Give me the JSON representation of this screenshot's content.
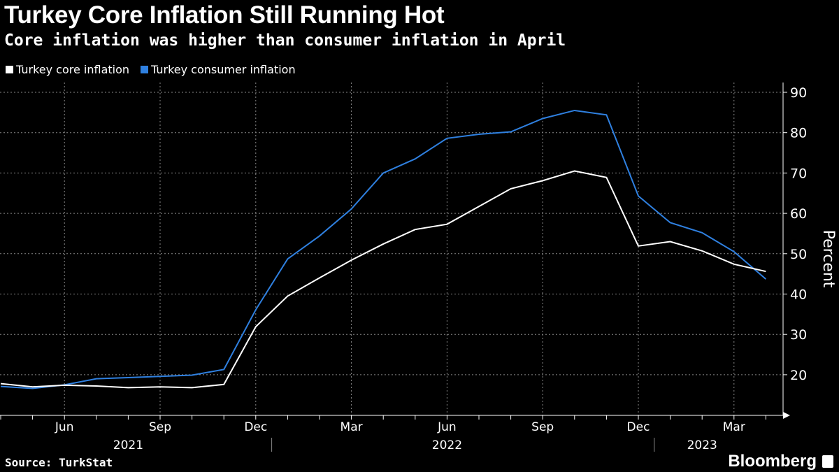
{
  "header": {
    "title": "Turkey Core Inflation Still Running Hot",
    "subtitle": "Core inflation was higher than consumer inflation in April"
  },
  "footer": {
    "source": "Source: TurkStat",
    "logo": "Bloomberg"
  },
  "chart_data": {
    "type": "line",
    "title": "Turkey Core Inflation Still Running Hot",
    "subtitle": "Core inflation was higher than consumer inflation in April",
    "ylabel": "Percent",
    "xlabel": "",
    "ylim": [
      12,
      92
    ],
    "yticks": [
      20,
      30,
      40,
      50,
      60,
      70,
      80,
      90
    ],
    "grid": true,
    "legend_placement": "top-left",
    "x": [
      "2021-04",
      "2021-05",
      "2021-06",
      "2021-07",
      "2021-08",
      "2021-09",
      "2021-10",
      "2021-11",
      "2021-12",
      "2022-01",
      "2022-02",
      "2022-03",
      "2022-04",
      "2022-05",
      "2022-06",
      "2022-07",
      "2022-08",
      "2022-09",
      "2022-10",
      "2022-11",
      "2022-12",
      "2023-01",
      "2023-02",
      "2023-03",
      "2023-04"
    ],
    "xtick_labels": [
      {
        "month": "2021-06",
        "label": "Jun"
      },
      {
        "month": "2021-09",
        "label": "Sep"
      },
      {
        "month": "2021-12",
        "label": "Dec"
      },
      {
        "month": "2022-03",
        "label": "Mar"
      },
      {
        "month": "2022-06",
        "label": "Jun"
      },
      {
        "month": "2022-09",
        "label": "Sep"
      },
      {
        "month": "2022-12",
        "label": "Dec"
      },
      {
        "month": "2023-03",
        "label": "Mar"
      }
    ],
    "year_labels": [
      {
        "month": "2021-08",
        "label": "2021"
      },
      {
        "month": "2022-06",
        "label": "2022"
      },
      {
        "month": "2023-02",
        "label": "2023"
      }
    ],
    "series": [
      {
        "name": "Turkey core inflation",
        "color": "#ffffff",
        "values": [
          17.8,
          17.0,
          17.4,
          17.2,
          16.8,
          17.0,
          16.8,
          17.6,
          31.9,
          39.5,
          44.0,
          48.4,
          52.4,
          56.0,
          57.3,
          61.7,
          66.1,
          68.1,
          70.5,
          68.9,
          51.9,
          53.0,
          50.7,
          47.4,
          45.6
        ]
      },
      {
        "name": "Turkey consumer inflation",
        "color": "#2f80e0",
        "values": [
          17.1,
          16.6,
          17.5,
          19.0,
          19.3,
          19.6,
          19.9,
          21.3,
          36.1,
          48.7,
          54.4,
          61.1,
          70.0,
          73.5,
          78.6,
          79.6,
          80.2,
          83.5,
          85.5,
          84.4,
          64.3,
          57.7,
          55.2,
          50.5,
          43.7
        ]
      }
    ]
  }
}
